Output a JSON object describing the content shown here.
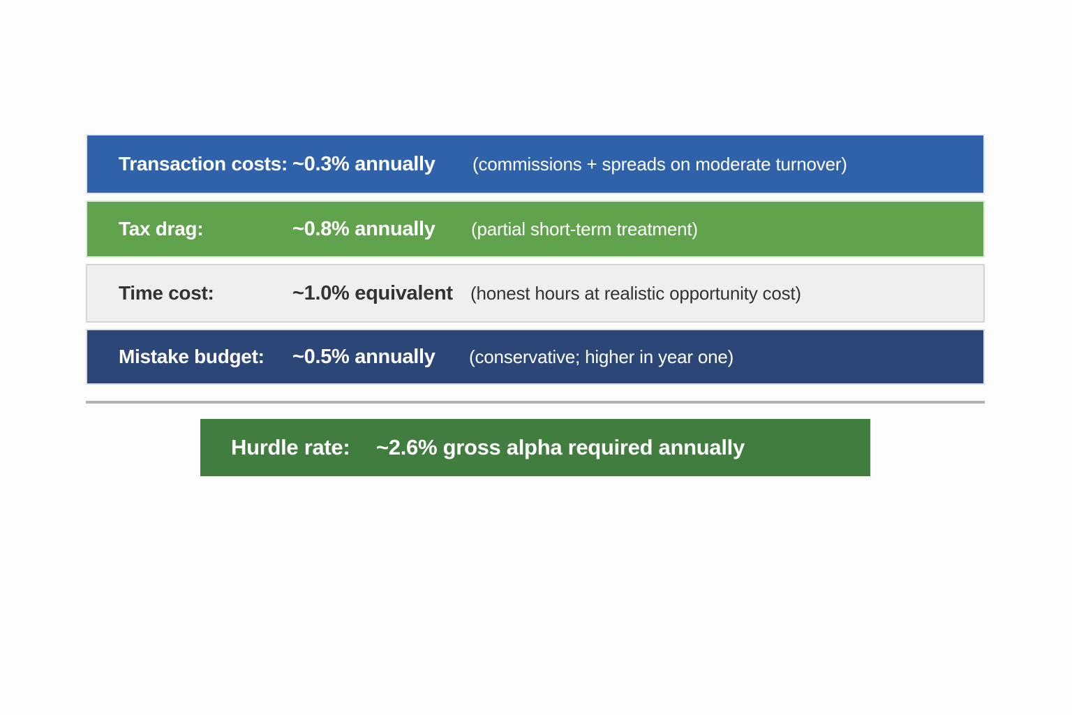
{
  "rows": [
    {
      "label": "Transaction costs:",
      "value": "~0.3% annually",
      "note": "(commissions + spreads on moderate turnover)",
      "bg": "#2f62a8",
      "text_color": "#ffffff"
    },
    {
      "label": "Tax drag:",
      "value": "~0.8% annually",
      "note": "(partial short-term treatment)",
      "bg": "#61a24d",
      "text_color": "#ffffff"
    },
    {
      "label": "Time cost:",
      "value": "~1.0% equivalent",
      "note": "(honest hours at realistic opportunity cost)",
      "bg": "#efefef",
      "text_color": "#333333"
    },
    {
      "label": "Mistake budget:",
      "value": "~0.5% annually",
      "note": "(conservative; higher in year one)",
      "bg": "#2c4678",
      "text_color": "#ffffff"
    }
  ],
  "summary": {
    "label": "Hurdle rate:",
    "value": "~2.6% gross alpha required annually",
    "bg": "#417d3f",
    "text_color": "#ffffff"
  },
  "colors": {
    "background": "#fdfdfd",
    "divider": "#b1b1b1"
  }
}
